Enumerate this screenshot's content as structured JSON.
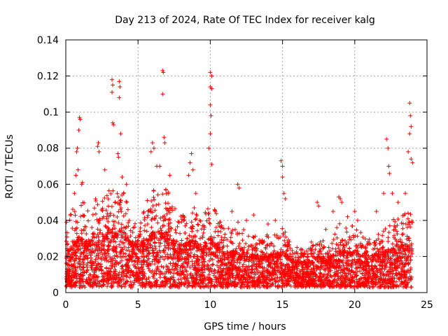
{
  "chart_data": {
    "type": "scatter",
    "title": "Day 213 of 2024, Rate Of TEC Index for receiver kalg",
    "xlabel": "GPS time / hours",
    "ylabel": "ROTI / TECUs",
    "xlim": [
      0,
      25
    ],
    "ylim": [
      0,
      0.14
    ],
    "x_ticks": [
      "0",
      "5",
      "10",
      "15",
      "20",
      "25"
    ],
    "y_ticks": [
      "0",
      "0.02",
      "0.04",
      "0.06",
      "0.08",
      "0.1",
      "0.12",
      "0.14"
    ],
    "grid": true,
    "marker": "+",
    "color": "#ff0000",
    "series": [
      {
        "name": "ROTI",
        "points": [
          [
            0.05,
            0.039
          ],
          [
            0.3,
            0.043
          ],
          [
            0.6,
            0.055
          ],
          [
            0.7,
            0.065
          ],
          [
            0.75,
            0.078
          ],
          [
            0.8,
            0.08
          ],
          [
            0.85,
            0.068
          ],
          [
            0.9,
            0.09
          ],
          [
            0.95,
            0.097
          ],
          [
            1.0,
            0.096
          ],
          [
            1.1,
            0.06
          ],
          [
            1.15,
            0.061
          ],
          [
            2.2,
            0.081
          ],
          [
            2.25,
            0.083
          ],
          [
            2.3,
            0.078
          ],
          [
            2.7,
            0.068
          ],
          [
            3.2,
            0.118
          ],
          [
            3.25,
            0.115
          ],
          [
            3.2,
            0.111
          ],
          [
            3.3,
            0.093
          ],
          [
            3.25,
            0.094
          ],
          [
            3.7,
            0.117
          ],
          [
            3.75,
            0.114
          ],
          [
            3.7,
            0.108
          ],
          [
            3.6,
            0.077
          ],
          [
            3.65,
            0.075
          ],
          [
            3.8,
            0.088
          ],
          [
            3.9,
            0.064
          ],
          [
            4.0,
            0.055
          ],
          [
            4.2,
            0.06
          ],
          [
            5.9,
            0.078
          ],
          [
            6.0,
            0.083
          ],
          [
            6.1,
            0.08
          ],
          [
            6.3,
            0.07
          ],
          [
            6.5,
            0.07
          ],
          [
            6.7,
            0.123
          ],
          [
            6.75,
            0.122
          ],
          [
            6.7,
            0.11
          ],
          [
            6.8,
            0.086
          ],
          [
            6.85,
            0.083
          ],
          [
            7.2,
            0.065
          ],
          [
            8.5,
            0.065
          ],
          [
            8.6,
            0.072
          ],
          [
            8.7,
            0.077
          ],
          [
            8.8,
            0.068
          ],
          [
            9.0,
            0.055
          ],
          [
            9.9,
            0.08
          ],
          [
            10.0,
            0.122
          ],
          [
            10.1,
            0.12
          ],
          [
            10.0,
            0.114
          ],
          [
            10.1,
            0.113
          ],
          [
            10.0,
            0.104
          ],
          [
            10.05,
            0.098
          ],
          [
            10.0,
            0.088
          ],
          [
            10.1,
            0.071
          ],
          [
            10.3,
            0.046
          ],
          [
            11.5,
            0.045
          ],
          [
            11.9,
            0.06
          ],
          [
            12.0,
            0.058
          ],
          [
            12.5,
            0.04
          ],
          [
            13.0,
            0.043
          ],
          [
            14.0,
            0.038
          ],
          [
            14.5,
            0.04
          ],
          [
            14.9,
            0.073
          ],
          [
            15.0,
            0.07
          ],
          [
            15.0,
            0.064
          ],
          [
            15.1,
            0.055
          ],
          [
            15.2,
            0.052
          ],
          [
            16.0,
            0.025
          ],
          [
            16.5,
            0.022
          ],
          [
            17.0,
            0.028
          ],
          [
            17.4,
            0.05
          ],
          [
            17.5,
            0.048
          ],
          [
            18.0,
            0.035
          ],
          [
            18.5,
            0.045
          ],
          [
            18.9,
            0.053
          ],
          [
            19.0,
            0.052
          ],
          [
            19.1,
            0.05
          ],
          [
            19.5,
            0.042
          ],
          [
            20.0,
            0.045
          ],
          [
            20.2,
            0.04
          ],
          [
            21.5,
            0.045
          ],
          [
            22.0,
            0.055
          ],
          [
            22.2,
            0.085
          ],
          [
            22.3,
            0.08
          ],
          [
            22.35,
            0.07
          ],
          [
            22.4,
            0.066
          ],
          [
            22.6,
            0.055
          ],
          [
            23.0,
            0.05
          ],
          [
            23.5,
            0.055
          ],
          [
            23.7,
            0.078
          ],
          [
            23.8,
            0.105
          ],
          [
            23.85,
            0.098
          ],
          [
            23.9,
            0.092
          ],
          [
            23.8,
            0.088
          ],
          [
            23.9,
            0.074
          ],
          [
            24.0,
            0.072
          ]
        ],
        "envelope_x": [
          0,
          0.5,
          1,
          1.5,
          2,
          2.5,
          3,
          3.5,
          4,
          4.5,
          5,
          5.5,
          6,
          6.5,
          7,
          7.5,
          8,
          8.5,
          9,
          9.5,
          10,
          10.5,
          11,
          11.5,
          12,
          12.5,
          13,
          13.5,
          14,
          14.5,
          15,
          15.5,
          16,
          16.5,
          17,
          17.5,
          18,
          18.5,
          19,
          19.5,
          20,
          20.5,
          21,
          21.5,
          22,
          22.5,
          23,
          23.5,
          24
        ],
        "envelope_max": [
          0.035,
          0.048,
          0.058,
          0.045,
          0.052,
          0.055,
          0.058,
          0.056,
          0.058,
          0.048,
          0.042,
          0.05,
          0.057,
          0.055,
          0.058,
          0.048,
          0.045,
          0.05,
          0.048,
          0.043,
          0.052,
          0.045,
          0.038,
          0.035,
          0.04,
          0.035,
          0.032,
          0.03,
          0.033,
          0.032,
          0.038,
          0.028,
          0.026,
          0.024,
          0.025,
          0.03,
          0.028,
          0.032,
          0.04,
          0.035,
          0.038,
          0.033,
          0.03,
          0.032,
          0.035,
          0.04,
          0.042,
          0.045,
          0.045
        ],
        "envelope_typical": [
          0.02,
          0.025,
          0.028,
          0.025,
          0.027,
          0.028,
          0.03,
          0.03,
          0.03,
          0.026,
          0.024,
          0.027,
          0.03,
          0.03,
          0.03,
          0.026,
          0.024,
          0.026,
          0.025,
          0.023,
          0.027,
          0.024,
          0.021,
          0.02,
          0.022,
          0.02,
          0.019,
          0.018,
          0.019,
          0.019,
          0.021,
          0.017,
          0.016,
          0.015,
          0.016,
          0.018,
          0.017,
          0.019,
          0.022,
          0.02,
          0.021,
          0.019,
          0.018,
          0.019,
          0.02,
          0.022,
          0.023,
          0.024,
          0.024
        ],
        "envelope_min": 0.003
      }
    ]
  }
}
